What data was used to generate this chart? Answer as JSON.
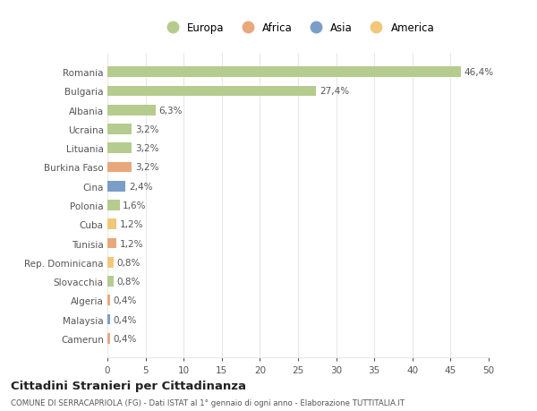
{
  "countries": [
    "Romania",
    "Bulgaria",
    "Albania",
    "Ucraina",
    "Lituania",
    "Burkina Faso",
    "Cina",
    "Polonia",
    "Cuba",
    "Tunisia",
    "Rep. Dominicana",
    "Slovacchia",
    "Algeria",
    "Malaysia",
    "Camerun"
  ],
  "values": [
    46.4,
    27.4,
    6.3,
    3.2,
    3.2,
    3.2,
    2.4,
    1.6,
    1.2,
    1.2,
    0.8,
    0.8,
    0.4,
    0.4,
    0.4
  ],
  "labels": [
    "46,4%",
    "27,4%",
    "6,3%",
    "3,2%",
    "3,2%",
    "3,2%",
    "2,4%",
    "1,6%",
    "1,2%",
    "1,2%",
    "0,8%",
    "0,8%",
    "0,4%",
    "0,4%",
    "0,4%"
  ],
  "colors": [
    "#b5cc8e",
    "#b5cc8e",
    "#b5cc8e",
    "#b5cc8e",
    "#b5cc8e",
    "#e8a87c",
    "#7b9ec9",
    "#b5cc8e",
    "#f0c87a",
    "#e8a87c",
    "#f0c87a",
    "#b5cc8e",
    "#e8a87c",
    "#7b9ec9",
    "#e8a87c"
  ],
  "legend_items": [
    {
      "label": "Europa",
      "color": "#b5cc8e"
    },
    {
      "label": "Africa",
      "color": "#e8a87c"
    },
    {
      "label": "Asia",
      "color": "#7b9ec9"
    },
    {
      "label": "America",
      "color": "#f0c87a"
    }
  ],
  "xlim": [
    0,
    50
  ],
  "xticks": [
    0,
    5,
    10,
    15,
    20,
    25,
    30,
    35,
    40,
    45,
    50
  ],
  "title": "Cittadini Stranieri per Cittadinanza",
  "subtitle": "COMUNE DI SERRACAPRIOLA (FG) - Dati ISTAT al 1° gennaio di ogni anno - Elaborazione TUTTITALIA.IT",
  "bg_color": "#ffffff",
  "grid_color": "#e8e8e8",
  "text_color": "#555555",
  "label_color": "#555555"
}
